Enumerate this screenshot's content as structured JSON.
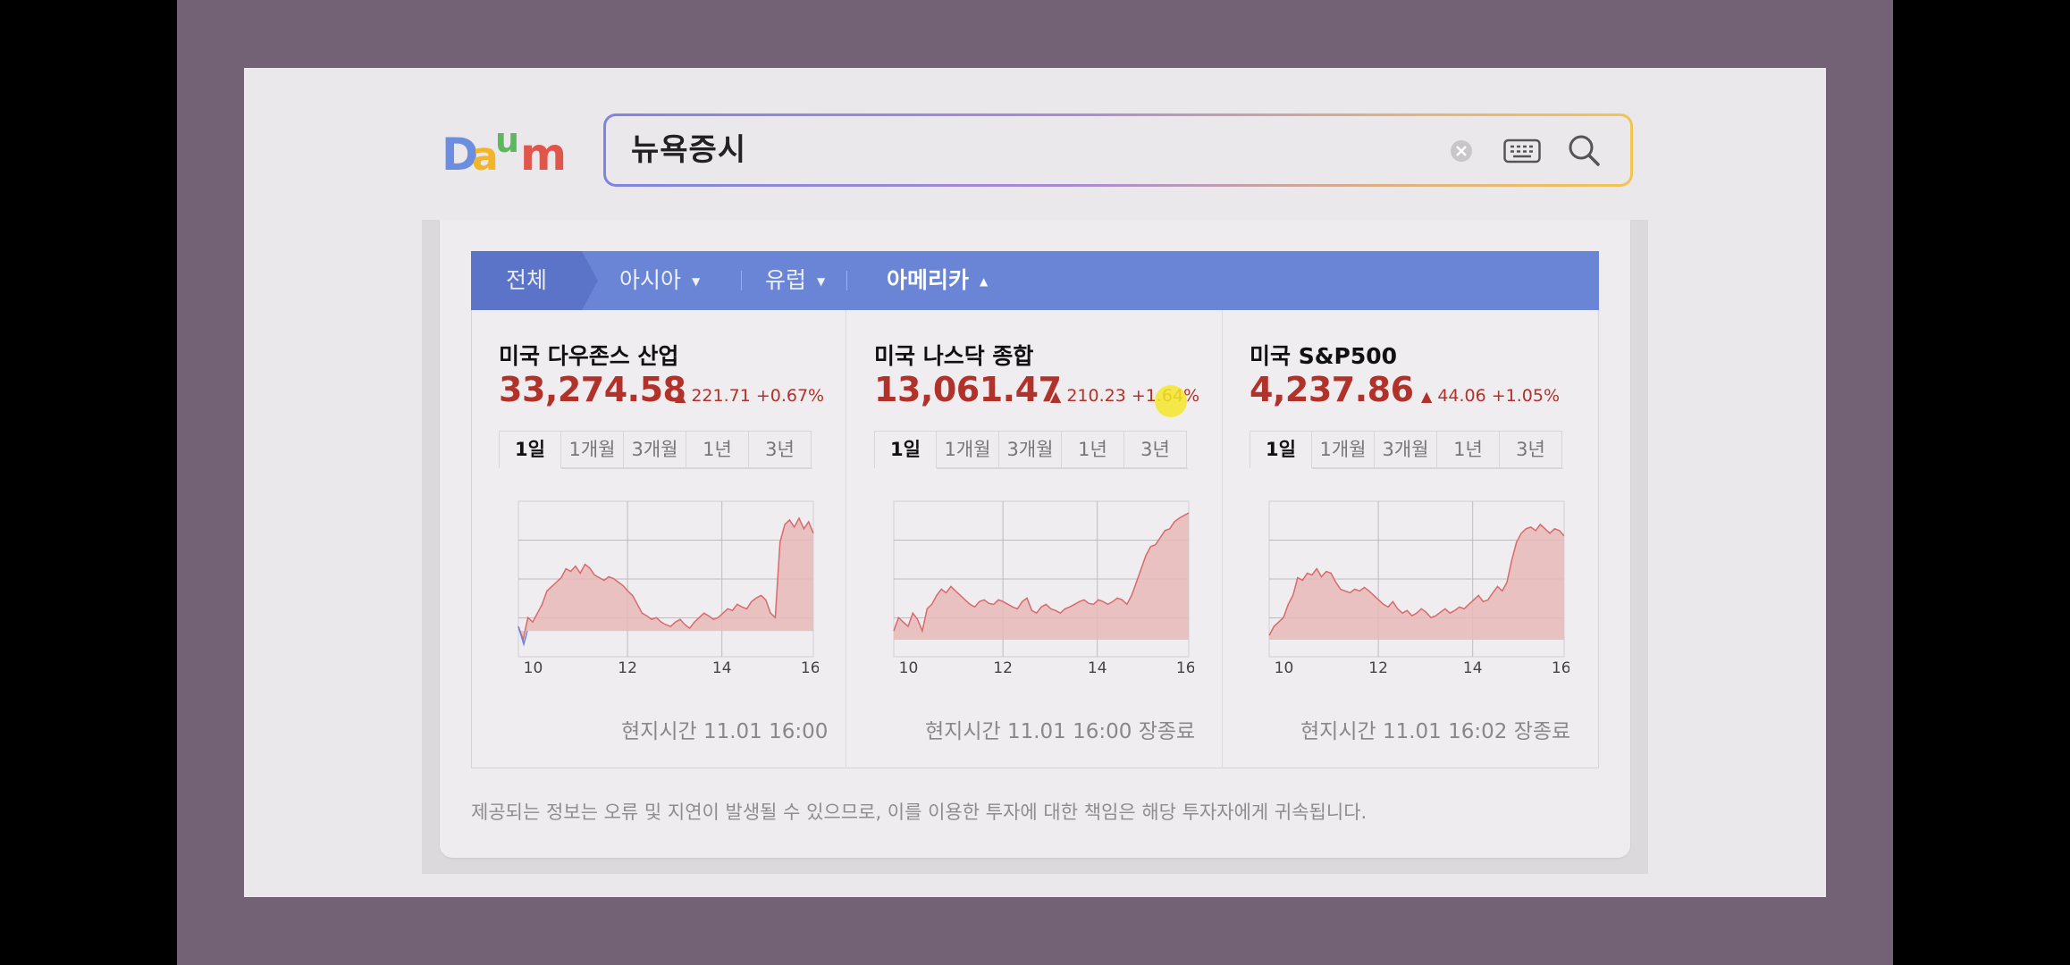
{
  "logo": {
    "text": "Daum"
  },
  "search": {
    "query": "뉴욕증시"
  },
  "region_tabs": [
    {
      "label": "전체"
    },
    {
      "label": "아시아"
    },
    {
      "label": "유럽"
    },
    {
      "label": "아메리카"
    }
  ],
  "indices": [
    {
      "name": "미국 다우존스 산업",
      "price": "33,274.58",
      "change": "221.71 +0.67%",
      "timestamp": "현지시간 11.01 16:00",
      "chart_data": {
        "type": "area",
        "x_ticks": [
          "10",
          "12",
          "14",
          "16"
        ],
        "series": [
          {
            "values": [
              0.2,
              0.05,
              0.3,
              0.25,
              0.35,
              0.45,
              0.6,
              0.65,
              0.7,
              0.75,
              0.85,
              0.82,
              0.88,
              0.8,
              0.9,
              0.86,
              0.78,
              0.75,
              0.72,
              0.76,
              0.74,
              0.7,
              0.66,
              0.6,
              0.55,
              0.45,
              0.35,
              0.32,
              0.28,
              0.3,
              0.25,
              0.22,
              0.2,
              0.25,
              0.28,
              0.22,
              0.18,
              0.25,
              0.3,
              0.35,
              0.32,
              0.28,
              0.3,
              0.35,
              0.4,
              0.38,
              0.45,
              0.42,
              0.4,
              0.48,
              0.52,
              0.55,
              0.5,
              0.35,
              0.3,
              1.15,
              1.35,
              1.4,
              1.32,
              1.42,
              1.3,
              1.38,
              1.25
            ]
          }
        ]
      }
    },
    {
      "name": "미국 나스닥 종합",
      "price": "13,061.47",
      "change": "210.23 +1.64%",
      "timestamp": "현지시간 11.01 16:00 장종료",
      "chart_data": {
        "type": "area",
        "x_ticks": [
          "10",
          "12",
          "14",
          "16"
        ],
        "series": [
          {
            "values": [
              0.15,
              0.3,
              0.25,
              0.2,
              0.35,
              0.28,
              0.15,
              0.4,
              0.45,
              0.55,
              0.62,
              0.58,
              0.65,
              0.6,
              0.55,
              0.5,
              0.45,
              0.42,
              0.48,
              0.5,
              0.46,
              0.45,
              0.5,
              0.48,
              0.45,
              0.42,
              0.4,
              0.48,
              0.52,
              0.38,
              0.35,
              0.42,
              0.45,
              0.4,
              0.38,
              0.35,
              0.4,
              0.42,
              0.45,
              0.48,
              0.5,
              0.46,
              0.45,
              0.5,
              0.48,
              0.45,
              0.48,
              0.52,
              0.5,
              0.45,
              0.55,
              0.7,
              0.85,
              1.0,
              1.1,
              1.12,
              1.2,
              1.28,
              1.3,
              1.38,
              1.42,
              1.45,
              1.48
            ]
          }
        ]
      }
    },
    {
      "name": "미국 S&P500",
      "price": "4,237.86",
      "change": "44.06 +1.05%",
      "timestamp": "현지시간 11.01 16:02 장종료",
      "chart_data": {
        "type": "area",
        "x_ticks": [
          "10",
          "12",
          "14",
          "16"
        ],
        "series": [
          {
            "values": [
              0.1,
              0.2,
              0.25,
              0.3,
              0.45,
              0.55,
              0.75,
              0.72,
              0.8,
              0.78,
              0.85,
              0.76,
              0.82,
              0.8,
              0.7,
              0.62,
              0.6,
              0.58,
              0.62,
              0.6,
              0.64,
              0.6,
              0.55,
              0.5,
              0.45,
              0.42,
              0.48,
              0.4,
              0.35,
              0.38,
              0.32,
              0.35,
              0.4,
              0.36,
              0.3,
              0.32,
              0.36,
              0.4,
              0.35,
              0.38,
              0.42,
              0.4,
              0.45,
              0.5,
              0.55,
              0.48,
              0.5,
              0.58,
              0.65,
              0.6,
              0.7,
              0.95,
              1.15,
              1.25,
              1.3,
              1.32,
              1.28,
              1.35,
              1.3,
              1.25,
              1.3,
              1.28,
              1.22
            ]
          }
        ]
      }
    }
  ],
  "disclaimer": "제공되는 정보는 오류 및 지연이 발생될 수 있으므로, 이를 이용한 투자에 대한 책임은 해당 투자자에게 귀속됩니다.",
  "period_tabs": [
    "1일",
    "1개월",
    "3개월",
    "1년",
    "3년"
  ],
  "colors": {
    "accent": "#6a84d6",
    "up": "#b0322b",
    "area_fill": "#e9b8b8",
    "area_line": "#d86a6a"
  }
}
